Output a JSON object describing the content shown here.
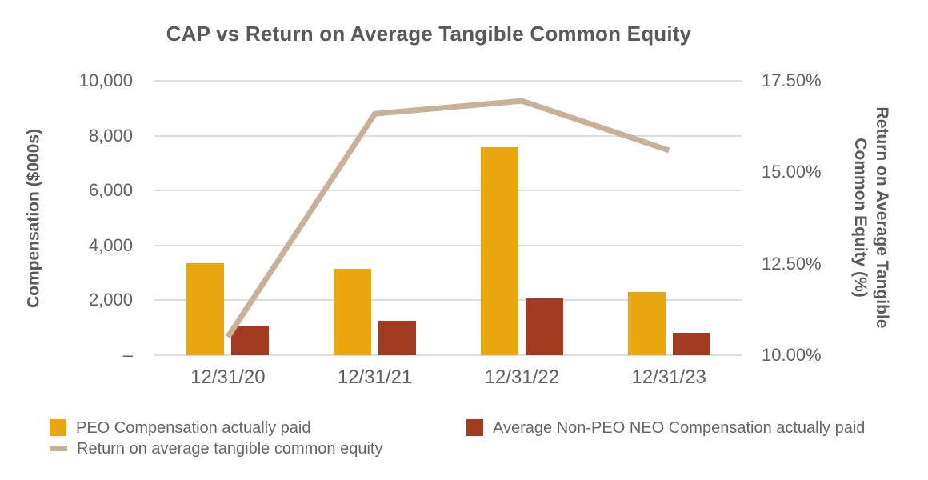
{
  "chart_data": {
    "type": "combo_bar_line",
    "title": "CAP vs Return on Average Tangible Common Equity",
    "categories": [
      "12/31/20",
      "12/31/21",
      "12/31/22",
      "12/31/23"
    ],
    "series": [
      {
        "name": "PEO Compensation actually paid",
        "type": "bar",
        "axis": "left",
        "color": "#EAA70D",
        "values": [
          3350,
          3150,
          7570,
          2290
        ]
      },
      {
        "name": "Average Non-PEO NEO Compensation actually paid",
        "type": "bar",
        "axis": "left",
        "color": "#A23B21",
        "values": [
          1060,
          1250,
          2070,
          830
        ]
      },
      {
        "name": "Return on average tangible common equity",
        "type": "line",
        "axis": "right",
        "color": "#C7B299",
        "values": [
          10.5,
          16.6,
          16.95,
          15.6
        ]
      }
    ],
    "y_left": {
      "label": "Compensation ($000s)",
      "min": 0,
      "max": 10000,
      "ticks": [
        10000,
        8000,
        6000,
        4000,
        2000,
        0
      ],
      "tick_labels": [
        "10,000",
        "8,000",
        "6,000",
        "4,000",
        "2,000",
        "–"
      ]
    },
    "y_right": {
      "label": "Return on Average Tangible Common Equity (%)",
      "label_lines": [
        "Return on Average Tangible",
        "Common Equity (%)"
      ],
      "min": 10,
      "max": 17.5,
      "ticks": [
        17.5,
        15.0,
        12.5,
        10.0
      ],
      "tick_labels": [
        "17.50%",
        "15.00%",
        "12.50%",
        "10.00%"
      ]
    },
    "grid": true,
    "legend_position": "bottom"
  },
  "colors": {
    "grid": "#dddddd",
    "title_text": "#595959",
    "tick_text": "#616161",
    "legend_text": "#666666"
  }
}
